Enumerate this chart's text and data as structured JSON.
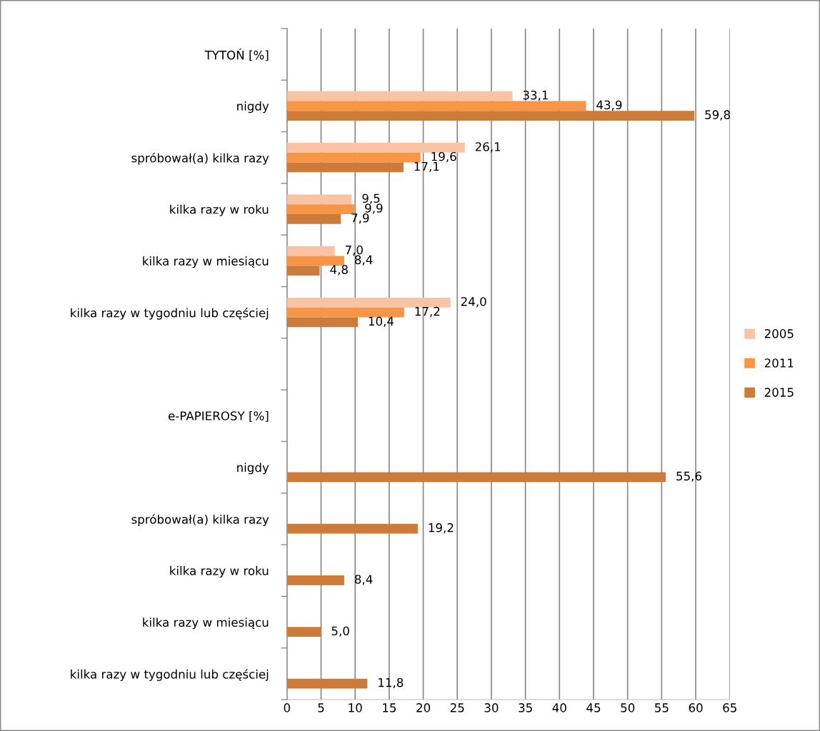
{
  "chart_data": {
    "type": "bar",
    "orientation": "horizontal",
    "categories": [
      "TYTOŃ [%]",
      "nigdy",
      "spróbował(a) kilka razy",
      "kilka razy w roku",
      "kilka razy w miesiącu",
      "kilka razy w tygodniu lub częściej",
      null,
      "e-PAPIEROSY [%]",
      "nigdy",
      "spróbował(a) kilka razy",
      "kilka razy w roku",
      "kilka razy w miesiącu",
      "kilka razy w tygodniu lub częściej"
    ],
    "series": [
      {
        "name": "2005",
        "color": "#f9c3a6",
        "values": [
          null,
          33.1,
          26.1,
          9.5,
          7.0,
          24.0,
          null,
          null,
          null,
          null,
          null,
          null,
          null
        ],
        "value_labels": [
          null,
          "33,1",
          "26,1",
          "9,5",
          "7,0",
          "24,0",
          null,
          null,
          null,
          null,
          null,
          null,
          null
        ]
      },
      {
        "name": "2011",
        "color": "#f79646",
        "values": [
          null,
          43.9,
          19.6,
          9.9,
          8.4,
          17.2,
          null,
          null,
          null,
          null,
          null,
          null,
          null
        ],
        "value_labels": [
          null,
          "43,9",
          "19,6",
          "9,9",
          "8,4",
          "17,2",
          null,
          null,
          null,
          null,
          null,
          null,
          null
        ]
      },
      {
        "name": "2015",
        "color": "#cd7b3b",
        "values": [
          null,
          59.8,
          17.1,
          7.9,
          4.8,
          10.4,
          null,
          null,
          55.6,
          19.2,
          8.4,
          5.0,
          11.8
        ],
        "value_labels": [
          null,
          "59,8",
          "17,1",
          "7,9",
          "4,8",
          "10,4",
          null,
          null,
          "55,6",
          "19,2",
          "8,4",
          "5,0",
          "11,8"
        ]
      }
    ],
    "xlim": [
      0,
      65
    ],
    "xticks": [
      0,
      5,
      10,
      15,
      20,
      25,
      30,
      35,
      40,
      45,
      50,
      55,
      60,
      65
    ],
    "grid": "x",
    "legend": "right"
  }
}
